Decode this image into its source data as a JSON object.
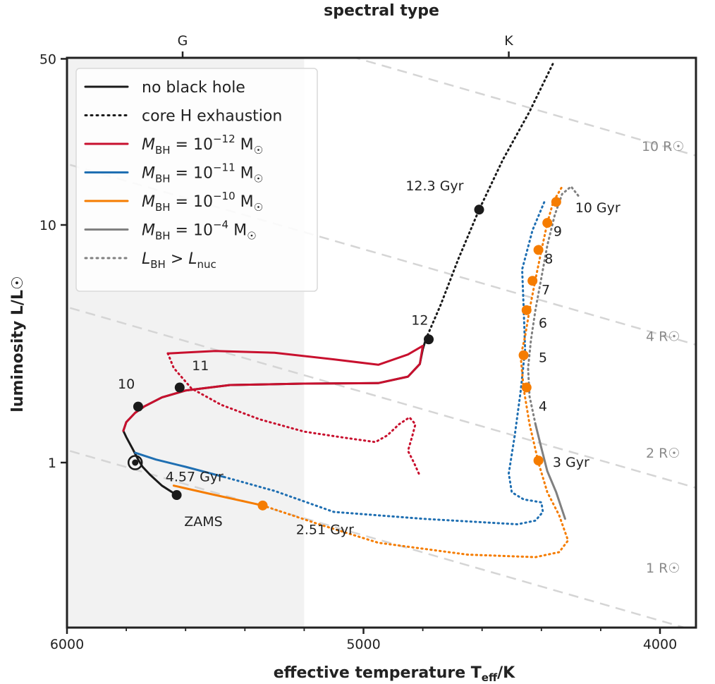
{
  "chart_data": {
    "type": "line",
    "title": "",
    "xlabel": "effective temperature T_eff/K",
    "xlabel_main": "effective temperature T",
    "xlabel_sub": "eff",
    "xlabel_unit": "/K",
    "top_xlabel": "spectral type",
    "ylabel": "luminosity L/L☉",
    "xlim": [
      6000,
      3800
    ],
    "ylim": [
      0.3,
      50
    ],
    "x_reversed": true,
    "y_scale": "log",
    "x_ticks": [
      6000,
      5000,
      4000
    ],
    "x_ticks_labels": [
      "6000",
      "5000",
      "4000"
    ],
    "x_minor_ticks": [
      5800,
      5600,
      5400,
      5200,
      4800,
      4600,
      4400,
      4200
    ],
    "y_ticks": [
      1,
      10,
      50
    ],
    "y_ticks_labels": [
      "1",
      "10",
      "50"
    ],
    "top_ticks": [
      {
        "label": "G",
        "teff": 5610
      },
      {
        "label": "K",
        "teff": 4510
      }
    ],
    "shaded_region": {
      "teff_from": 6000,
      "teff_to": 5200,
      "color": "#f2f2f2"
    },
    "legend_position": "top-left",
    "legend": [
      {
        "label": "no black hole",
        "style": "solid",
        "color": "#1a1a1a"
      },
      {
        "label": "core H exhaustion",
        "style": "dotted",
        "color": "#1a1a1a"
      },
      {
        "label": "M_BH = 10^-12 M☉",
        "main": "M",
        "sub": "BH",
        "eq": " = 10",
        "sup": "−12",
        "unit": " M",
        "sun": "☉",
        "style": "solid",
        "color": "#c8102e"
      },
      {
        "label": "M_BH = 10^-11 M☉",
        "main": "M",
        "sub": "BH",
        "eq": " = 10",
        "sup": "−11",
        "unit": " M",
        "sun": "☉",
        "style": "solid",
        "color": "#1f6fb2"
      },
      {
        "label": "M_BH = 10^-10 M☉",
        "main": "M",
        "sub": "BH",
        "eq": " = 10",
        "sup": "−10",
        "unit": " M",
        "sun": "☉",
        "style": "solid",
        "color": "#f57c00"
      },
      {
        "label": "M_BH = 10^-4 M☉",
        "main": "M",
        "sub": "BH",
        "eq": " = 10",
        "sup": "−4",
        "unit": " M",
        "sun": "☉",
        "style": "solid",
        "color": "#808080"
      },
      {
        "label": "L_BH > L_nuc",
        "main": "L",
        "sub": "BH",
        "eq": " > ",
        "main2": "L",
        "sub2": "nuc",
        "style": "dotted",
        "color": "#808080"
      }
    ],
    "radius_lines": [
      {
        "label": "1 R☉",
        "radius": 1,
        "label_teff": 3990,
        "label_lum": 0.345
      },
      {
        "label": "2 R☉",
        "radius": 2,
        "label_teff": 3990,
        "label_lum": 1.05
      },
      {
        "label": "4 R☉",
        "radius": 4,
        "label_teff": 3990,
        "label_lum": 3.25
      },
      {
        "label": "10 R☉",
        "radius": 10,
        "label_teff": 3990,
        "label_lum": 20.5
      }
    ],
    "series": [
      {
        "name": "no black hole",
        "color": "#1a1a1a",
        "style": "solid",
        "points": [
          [
            5630,
            0.73
          ],
          [
            5680,
            0.8
          ],
          [
            5720,
            0.89
          ],
          [
            5745,
            0.96
          ],
          [
            5760,
            1.03
          ],
          [
            5775,
            1.12
          ],
          [
            5800,
            1.28
          ],
          [
            5810,
            1.36
          ],
          [
            5800,
            1.48
          ],
          [
            5770,
            1.62
          ],
          [
            5740,
            1.72
          ],
          [
            5680,
            1.88
          ],
          [
            5600,
            2.01
          ],
          [
            5450,
            2.12
          ],
          [
            5200,
            2.15
          ],
          [
            4950,
            2.16
          ],
          [
            4850,
            2.3
          ],
          [
            4810,
            2.6
          ],
          [
            4800,
            3.0
          ],
          [
            4790,
            3.3
          ]
        ]
      },
      {
        "name": "core H exhaustion",
        "color": "#1a1a1a",
        "style": "dotted",
        "points": [
          [
            4790,
            3.3
          ],
          [
            4740,
            4.6
          ],
          [
            4680,
            7.2
          ],
          [
            4610,
            11.6
          ],
          [
            4530,
            18.8
          ],
          [
            4440,
            30.0
          ],
          [
            4360,
            48.0
          ]
        ]
      },
      {
        "name": "M_BH = 10^-12 M☉",
        "color": "#c8102e",
        "style": "solid",
        "points": [
          [
            5810,
            1.36
          ],
          [
            5800,
            1.48
          ],
          [
            5770,
            1.62
          ],
          [
            5740,
            1.72
          ],
          [
            5680,
            1.88
          ],
          [
            5600,
            2.01
          ],
          [
            5450,
            2.12
          ],
          [
            5200,
            2.15
          ],
          [
            4950,
            2.16
          ],
          [
            4850,
            2.3
          ],
          [
            4810,
            2.6
          ],
          [
            4800,
            3.1
          ],
          [
            4850,
            2.85
          ],
          [
            4950,
            2.58
          ],
          [
            5100,
            2.72
          ],
          [
            5300,
            2.9
          ],
          [
            5500,
            2.95
          ],
          [
            5660,
            2.88
          ]
        ]
      },
      {
        "name": "M_BH = 10^-12 M☉ (L_BH > L_nuc)",
        "color": "#c8102e",
        "style": "dotted",
        "points": [
          [
            5660,
            2.88
          ],
          [
            5640,
            2.5
          ],
          [
            5580,
            2.05
          ],
          [
            5480,
            1.75
          ],
          [
            5350,
            1.52
          ],
          [
            5200,
            1.35
          ],
          [
            5060,
            1.27
          ],
          [
            4960,
            1.22
          ],
          [
            4920,
            1.3
          ],
          [
            4880,
            1.45
          ],
          [
            4845,
            1.55
          ],
          [
            4825,
            1.45
          ],
          [
            4835,
            1.3
          ],
          [
            4850,
            1.12
          ],
          [
            4830,
            1.0
          ],
          [
            4810,
            0.88
          ]
        ]
      },
      {
        "name": "M_BH = 10^-11 M☉",
        "color": "#1f6fb2",
        "style": "solid",
        "points": [
          [
            5770,
            1.1
          ],
          [
            5700,
            1.03
          ],
          [
            5600,
            0.96
          ],
          [
            5470,
            0.87
          ]
        ]
      },
      {
        "name": "M_BH = 10^-11 M☉ (L_BH > L_nuc)",
        "color": "#1f6fb2",
        "style": "dotted",
        "points": [
          [
            5470,
            0.87
          ],
          [
            5300,
            0.76
          ],
          [
            5100,
            0.62
          ],
          [
            4800,
            0.58
          ],
          [
            4480,
            0.55
          ],
          [
            4420,
            0.57
          ],
          [
            4395,
            0.62
          ],
          [
            4400,
            0.68
          ],
          [
            4460,
            0.7
          ],
          [
            4500,
            0.75
          ],
          [
            4510,
            0.9
          ],
          [
            4490,
            1.3
          ],
          [
            4470,
            2.0
          ],
          [
            4455,
            3.0
          ],
          [
            4460,
            4.5
          ],
          [
            4465,
            6.5
          ],
          [
            4430,
            9.5
          ],
          [
            4390,
            12.5
          ]
        ]
      },
      {
        "name": "M_BH = 10^-10 M☉",
        "color": "#f57c00",
        "style": "solid",
        "points": [
          [
            5640,
            0.8
          ],
          [
            5520,
            0.74
          ],
          [
            5340,
            0.66
          ]
        ]
      },
      {
        "name": "M_BH = 10^-10 M☉ (L_BH > L_nuc)",
        "color": "#f57c00",
        "style": "dotted",
        "points": [
          [
            5340,
            0.66
          ],
          [
            5150,
            0.55
          ],
          [
            4950,
            0.46
          ],
          [
            4650,
            0.41
          ],
          [
            4420,
            0.4
          ],
          [
            4340,
            0.42
          ],
          [
            4310,
            0.47
          ],
          [
            4340,
            0.6
          ],
          [
            4380,
            0.75
          ],
          [
            4410,
            1.0
          ],
          [
            4440,
            1.45
          ],
          [
            4460,
            2.05
          ],
          [
            4470,
            2.8
          ],
          [
            4455,
            3.4
          ],
          [
            4440,
            4.4
          ],
          [
            4420,
            5.9
          ],
          [
            4400,
            7.8
          ],
          [
            4380,
            10.2
          ],
          [
            4360,
            12.5
          ],
          [
            4330,
            14.5
          ]
        ]
      },
      {
        "name": "M_BH = 10^-4 M☉",
        "color": "#808080",
        "style": "solid",
        "points": [
          [
            4420,
            1.45
          ],
          [
            4400,
            1.15
          ],
          [
            4380,
            0.92
          ],
          [
            4350,
            0.75
          ],
          [
            4320,
            0.58
          ]
        ]
      },
      {
        "name": "M_BH = 10^-4 M☉ (L_BH > L_nuc)",
        "color": "#808080",
        "style": "dotted",
        "points": [
          [
            4420,
            1.45
          ],
          [
            4440,
            1.9
          ],
          [
            4445,
            2.5
          ],
          [
            4435,
            3.3
          ],
          [
            4420,
            4.4
          ],
          [
            4400,
            6.0
          ],
          [
            4380,
            8.2
          ],
          [
            4355,
            11.0
          ],
          [
            4330,
            13.5
          ],
          [
            4300,
            14.5
          ],
          [
            4270,
            13.0
          ]
        ]
      }
    ],
    "markers": [
      {
        "teff": 5630,
        "lum": 0.73,
        "color": "#1a1a1a",
        "label": "ZAMS",
        "lx": 5540,
        "ly": 0.54
      },
      {
        "teff": 5770,
        "lum": 1.0,
        "color": "#1a1a1a",
        "ring": true,
        "label": "4.57 Gyr",
        "lx": 5570,
        "ly": 0.835
      },
      {
        "teff": 5760,
        "lum": 1.72,
        "color": "#1a1a1a",
        "label": "10",
        "lx": 5800,
        "ly": 2.05
      },
      {
        "teff": 5620,
        "lum": 2.07,
        "color": "#1a1a1a",
        "label": "11",
        "lx": 5550,
        "ly": 2.45
      },
      {
        "teff": 4780,
        "lum": 3.3,
        "color": "#1a1a1a",
        "label": "12",
        "lx": 4810,
        "ly": 3.8
      },
      {
        "teff": 4610,
        "lum": 11.6,
        "color": "#1a1a1a",
        "label": "12.3 Gyr",
        "lx": 4760,
        "ly": 14.0
      },
      {
        "teff": 5340,
        "lum": 0.66,
        "color": "#f57c00",
        "label": "2.51 Gyr",
        "lx": 5130,
        "ly": 0.5
      },
      {
        "teff": 4410,
        "lum": 1.02,
        "color": "#f57c00",
        "label": "3 Gyr",
        "lx": 4300,
        "ly": 0.96
      },
      {
        "teff": 4450,
        "lum": 2.07,
        "color": "#f57c00",
        "label": "4",
        "lx": 4395,
        "ly": 1.65
      },
      {
        "teff": 4460,
        "lum": 2.83,
        "color": "#f57c00",
        "label": "5",
        "lx": 4395,
        "ly": 2.65
      },
      {
        "teff": 4450,
        "lum": 4.38,
        "color": "#f57c00",
        "label": "6",
        "lx": 4395,
        "ly": 3.7
      },
      {
        "teff": 4430,
        "lum": 5.82,
        "color": "#f57c00",
        "label": "7",
        "lx": 4385,
        "ly": 5.1
      },
      {
        "teff": 4410,
        "lum": 7.85,
        "color": "#f57c00",
        "label": "8",
        "lx": 4375,
        "ly": 6.9
      },
      {
        "teff": 4380,
        "lum": 10.2,
        "color": "#f57c00",
        "label": "9",
        "lx": 4345,
        "ly": 9.0
      },
      {
        "teff": 4350,
        "lum": 12.5,
        "color": "#f57c00",
        "label": "10 Gyr",
        "lx": 4210,
        "ly": 11.3
      }
    ]
  }
}
